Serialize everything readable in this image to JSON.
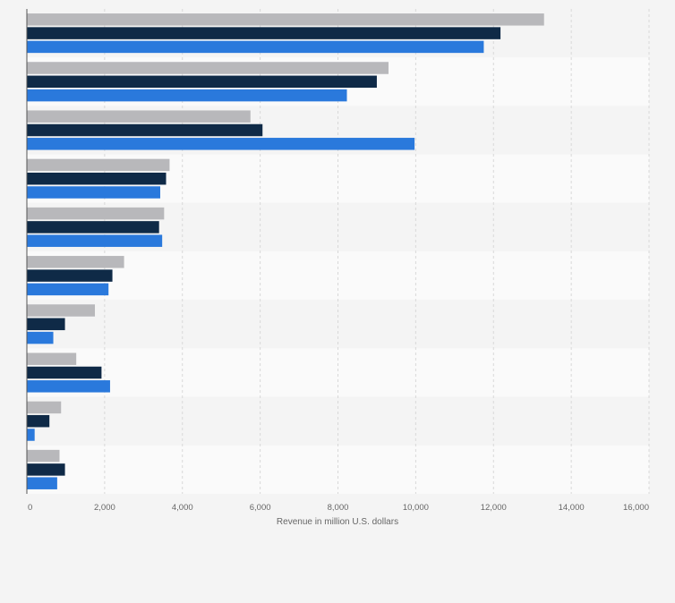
{
  "chart_data": {
    "type": "bar",
    "orientation": "horizontal",
    "categories": [
      "",
      "",
      "",
      "",
      "",
      "",
      "",
      "",
      "",
      ""
    ],
    "series": [
      {
        "color": "#b8b8bb",
        "values": [
          13300,
          9300,
          5750,
          3670,
          3530,
          2500,
          1750,
          1270,
          880,
          840
        ]
      },
      {
        "color": "#0f2a47",
        "values": [
          12180,
          9000,
          6060,
          3580,
          3400,
          2200,
          980,
          1920,
          580,
          980
        ]
      },
      {
        "color": "#2a79dc",
        "values": [
          11750,
          8230,
          9970,
          3430,
          3480,
          2100,
          680,
          2140,
          200,
          780
        ]
      }
    ],
    "title": "",
    "xlabel": "Revenue in million U.S. dollars",
    "ylabel": "",
    "xlim": [
      0,
      16000
    ],
    "xticks": [
      0,
      2000,
      4000,
      6000,
      8000,
      10000,
      12000,
      14000,
      16000
    ],
    "xtick_labels": [
      "0",
      "2,000",
      "4,000",
      "6,000",
      "8,000",
      "10,000",
      "12,000",
      "14,000",
      "16,000"
    ],
    "grid": true,
    "legend": "none"
  }
}
